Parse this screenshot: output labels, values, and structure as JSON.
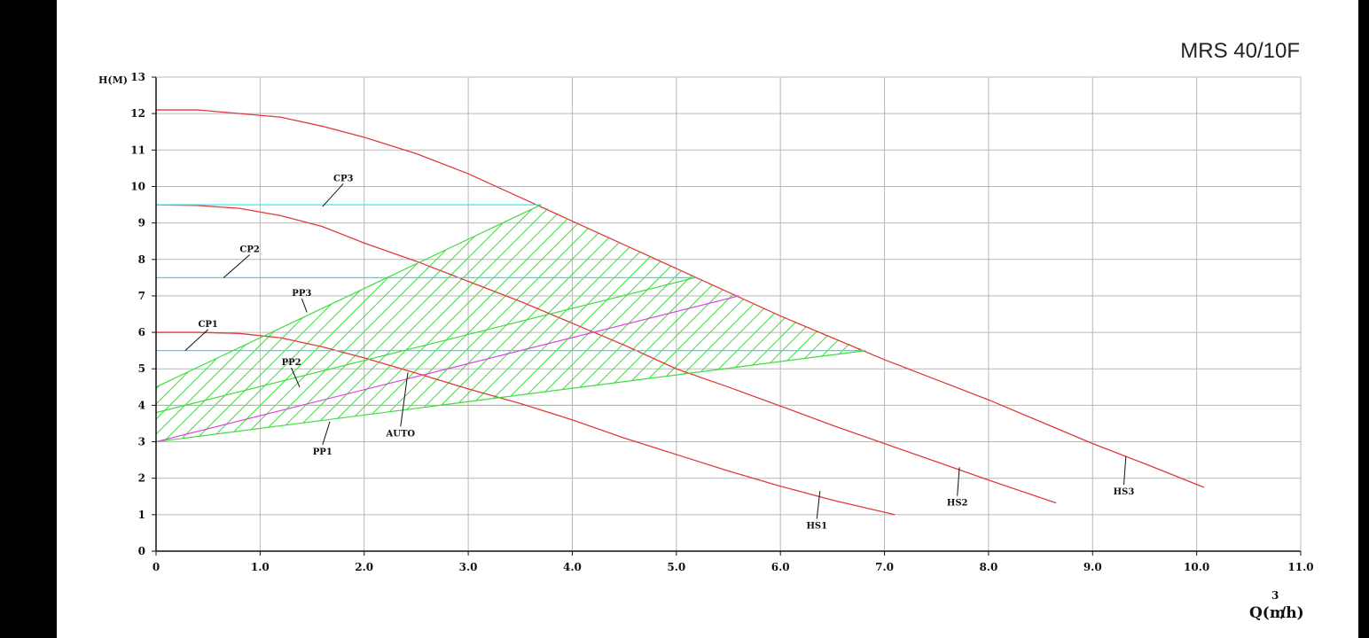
{
  "chart_data": {
    "type": "line",
    "title": "MRS 40/10F",
    "ylabel": "H(M)",
    "xlabel_main": "Q(m",
    "xlabel_sup": "3",
    "xlabel_tail": "/h)",
    "xlim": [
      0,
      11
    ],
    "ylim": [
      0,
      13
    ],
    "grid": true,
    "xticks": [
      0,
      1,
      2,
      3,
      4,
      5,
      6,
      7,
      8,
      9,
      10,
      11
    ],
    "xtick_labels": [
      "0",
      "1.0",
      "2.0",
      "3.0",
      "4.0",
      "5.0",
      "6.0",
      "7.0",
      "8.0",
      "9.0",
      "10.0",
      "11.0"
    ],
    "yticks": [
      0,
      1,
      2,
      3,
      4,
      5,
      6,
      7,
      8,
      9,
      10,
      11,
      12,
      13
    ],
    "ytick_labels": [
      "0",
      "1",
      "2",
      "3",
      "4",
      "5",
      "6",
      "7",
      "8",
      "9",
      "10",
      "11",
      "12",
      "13"
    ],
    "colors": {
      "max_curves": "#e23a3a",
      "constant_pressure": "#2fe0f0",
      "proportional_pressure": "#40dd40",
      "auto": "#e040e0",
      "grid": "#b8b8b8",
      "axis": "#111111"
    },
    "series": [
      {
        "name": "HS1",
        "kind": "max",
        "x": [
          0,
          0.4,
          0.8,
          1.2,
          1.6,
          2.0,
          2.5,
          3.0,
          3.5,
          4.0,
          4.5,
          5.0,
          5.5,
          6.0,
          6.5,
          7.1
        ],
        "y": [
          6.0,
          6.0,
          5.97,
          5.85,
          5.6,
          5.3,
          4.88,
          4.45,
          4.05,
          3.6,
          3.1,
          2.65,
          2.2,
          1.78,
          1.4,
          1.0
        ]
      },
      {
        "name": "HS2",
        "kind": "max",
        "x": [
          0,
          0.4,
          0.8,
          1.2,
          1.6,
          2.0,
          2.5,
          3.0,
          3.5,
          4.0,
          4.5,
          5.0,
          5.5,
          6.0,
          6.5,
          7.0,
          7.5,
          8.0,
          8.65
        ],
        "y": [
          9.5,
          9.48,
          9.4,
          9.2,
          8.9,
          8.45,
          7.95,
          7.4,
          6.85,
          6.25,
          5.65,
          5.0,
          4.5,
          3.98,
          3.45,
          2.95,
          2.45,
          1.95,
          1.32
        ]
      },
      {
        "name": "HS3",
        "kind": "max",
        "x": [
          0,
          0.4,
          0.8,
          1.2,
          1.6,
          2.0,
          2.5,
          3.0,
          3.5,
          4.0,
          4.5,
          5.0,
          5.5,
          6.0,
          6.5,
          7.0,
          7.5,
          8.0,
          8.5,
          9.0,
          9.5,
          10.07
        ],
        "y": [
          12.1,
          12.1,
          12.0,
          11.9,
          11.65,
          11.35,
          10.9,
          10.35,
          9.7,
          9.05,
          8.4,
          7.75,
          7.1,
          6.45,
          5.85,
          5.25,
          4.7,
          4.15,
          3.55,
          2.95,
          2.4,
          1.75
        ]
      },
      {
        "name": "CP1",
        "kind": "constant",
        "x": [
          0,
          6.82
        ],
        "y": [
          5.5,
          5.5
        ]
      },
      {
        "name": "CP2",
        "kind": "constant",
        "x": [
          0,
          5.18
        ],
        "y": [
          7.5,
          7.5
        ]
      },
      {
        "name": "CP3",
        "kind": "constant",
        "x": [
          0,
          3.7
        ],
        "y": [
          9.5,
          9.5
        ]
      },
      {
        "name": "PP1",
        "kind": "proportional",
        "x": [
          0,
          6.82
        ],
        "y": [
          3.0,
          5.5
        ]
      },
      {
        "name": "PP2",
        "kind": "proportional",
        "x": [
          0,
          5.18
        ],
        "y": [
          3.8,
          7.5
        ]
      },
      {
        "name": "PP3",
        "kind": "proportional",
        "x": [
          0,
          3.7
        ],
        "y": [
          4.5,
          9.5
        ]
      },
      {
        "name": "AUTO",
        "kind": "auto",
        "x": [
          0,
          5.6
        ],
        "y": [
          3.0,
          7.0
        ]
      }
    ],
    "hatched_region": [
      [
        0,
        3.0
      ],
      [
        6.82,
        5.5
      ],
      [
        6.0,
        6.45
      ],
      [
        5.0,
        7.75
      ],
      [
        4.0,
        9.05
      ],
      [
        3.7,
        9.5
      ],
      [
        0,
        4.5
      ]
    ],
    "faint_reference": {
      "x": [
        0,
        5.0
      ],
      "y": [
        4.0,
        4.0
      ]
    },
    "annotations": [
      {
        "text": "CP3",
        "at": [
          1.6,
          9.45
        ],
        "label": [
          1.8,
          10.15
        ]
      },
      {
        "text": "CP2",
        "at": [
          0.65,
          7.5
        ],
        "label": [
          0.9,
          8.2
        ]
      },
      {
        "text": "CP1",
        "at": [
          0.28,
          5.5
        ],
        "label": [
          0.5,
          6.15
        ]
      },
      {
        "text": "PP3",
        "at": [
          1.45,
          6.55
        ],
        "label": [
          1.4,
          7.0
        ]
      },
      {
        "text": "PP2",
        "at": [
          1.38,
          4.5
        ],
        "label": [
          1.3,
          5.1
        ]
      },
      {
        "text": "PP1",
        "at": [
          1.67,
          3.55
        ],
        "label": [
          1.6,
          2.65
        ]
      },
      {
        "text": "AUTO",
        "at": [
          2.42,
          4.9
        ],
        "label": [
          2.35,
          3.15
        ]
      },
      {
        "text": "HS1",
        "at": [
          6.38,
          1.65
        ],
        "label": [
          6.35,
          0.62
        ]
      },
      {
        "text": "HS2",
        "at": [
          7.72,
          2.3
        ],
        "label": [
          7.7,
          1.25
        ]
      },
      {
        "text": "HS3",
        "at": [
          9.32,
          2.6
        ],
        "label": [
          9.3,
          1.55
        ]
      }
    ]
  }
}
